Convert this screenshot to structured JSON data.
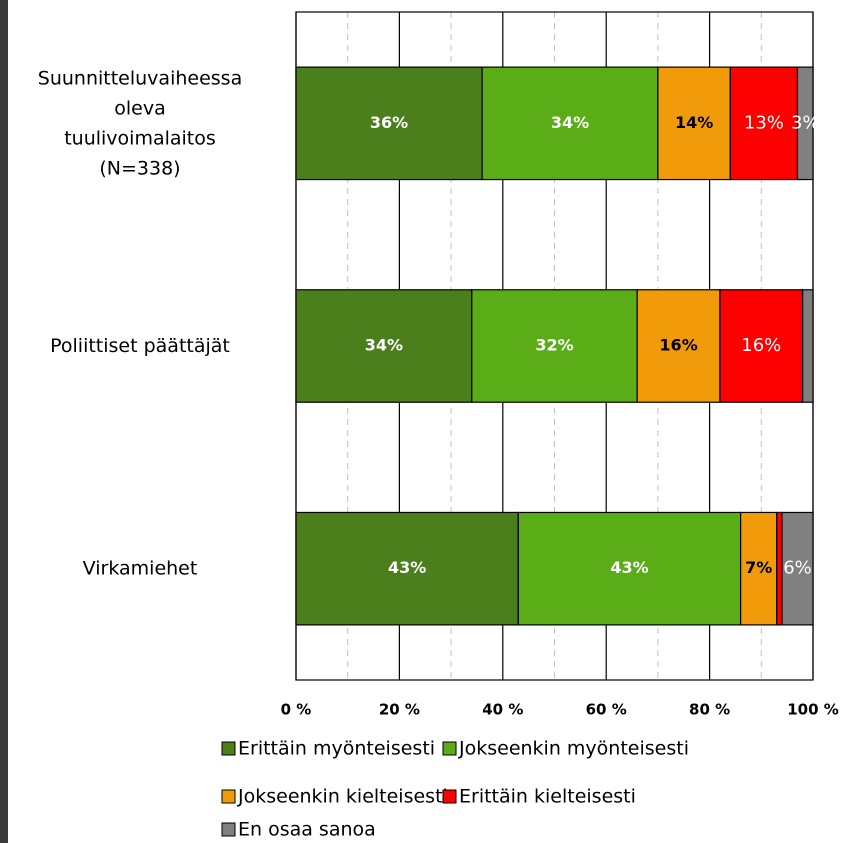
{
  "chart_data": {
    "type": "stacked_barh",
    "categories": [
      "Suunnitteluvaiheessa\noleva\ntuulivoimalaitos\n(N=338)",
      "Poliittiset päättäjät",
      "Virkamiehet"
    ],
    "series": [
      {
        "name": "Erittäin myönteisesti",
        "color": "#4a7f1c",
        "values": [
          36,
          34,
          43
        ],
        "value_labels": [
          "36%",
          "34%",
          "43%"
        ]
      },
      {
        "name": "Jokseenkin myönteisesti",
        "color": "#5aad16",
        "values": [
          34,
          32,
          43
        ],
        "value_labels": [
          "34%",
          "32%",
          "43%"
        ]
      },
      {
        "name": "Jokseenkin kielteisesti",
        "color": "#f19b0a",
        "values": [
          14,
          16,
          7
        ],
        "value_labels": [
          "14%",
          "16%",
          "7%"
        ]
      },
      {
        "name": "Erittäin kielteisesti",
        "color": "#fd0000",
        "values": [
          13,
          16,
          1
        ],
        "value_labels": [
          "13%",
          "16%",
          null
        ]
      },
      {
        "name": "En osaa sanoa",
        "color": "#808080",
        "values": [
          3,
          2,
          6
        ],
        "value_labels": [
          "3%",
          null,
          "6%"
        ]
      }
    ],
    "xlim": [
      0,
      100
    ],
    "xticks": [
      {
        "value": 0,
        "label": "0 %"
      },
      {
        "value": 20,
        "label": "20 %"
      },
      {
        "value": 40,
        "label": "40 %"
      },
      {
        "value": 60,
        "label": "60 %"
      },
      {
        "value": 80,
        "label": "80 %"
      },
      {
        "value": 100,
        "label": "100 %"
      }
    ],
    "minor_xticks": [
      10,
      30,
      50,
      70,
      90
    ],
    "grid": true,
    "legend": "bottom"
  }
}
